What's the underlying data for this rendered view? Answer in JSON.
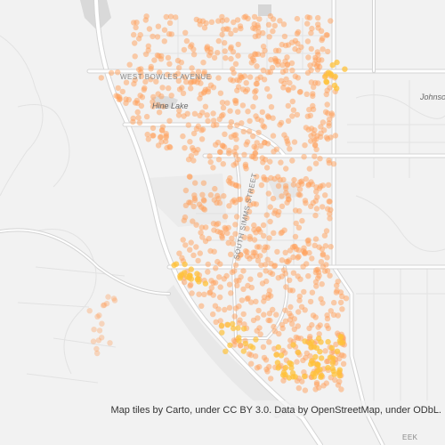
{
  "map": {
    "labels": {
      "west_bowles": "WEST BOWLES AVENUE",
      "hine_lake": "Hine Lake",
      "johnson": "Johnso",
      "south_simms": "SOUTH SIMMS STREET",
      "creek": "EEK"
    }
  },
  "attribution": "Map tiles by Carto, under CC BY 3.0. Data by OpenStreetMap, under ODbL."
}
